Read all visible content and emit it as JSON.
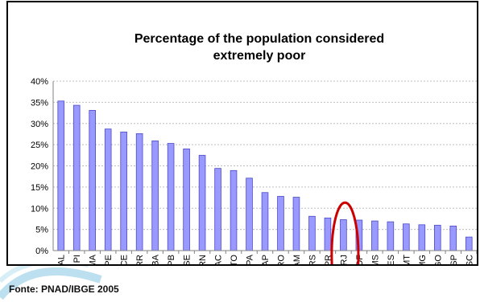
{
  "chart_data": {
    "type": "bar",
    "title_lines": [
      "Percentage of the population considered",
      "extremely poor"
    ],
    "categories": [
      "AL",
      "PI",
      "MA",
      "PE",
      "CE",
      "RR",
      "BA",
      "PB",
      "SE",
      "RN",
      "AC",
      "TO",
      "PA",
      "AP",
      "RO",
      "AM",
      "RS",
      "PR",
      "RJ",
      "DF",
      "MS",
      "ES",
      "MT",
      "MG",
      "GO",
      "SP",
      "SC"
    ],
    "values": [
      35.3,
      34.3,
      33.1,
      28.7,
      28.0,
      27.6,
      25.9,
      25.3,
      24.0,
      22.5,
      19.4,
      18.9,
      17.1,
      13.7,
      12.8,
      12.6,
      8.1,
      7.7,
      7.3,
      7.2,
      7.0,
      6.8,
      6.3,
      6.1,
      6.0,
      5.8,
      3.2
    ],
    "y_ticks": [
      "0%",
      "5%",
      "10%",
      "15%",
      "20%",
      "25%",
      "30%",
      "35%",
      "40%"
    ],
    "ylim": [
      0,
      40
    ],
    "grid": true,
    "highlighted_category": "RJ",
    "colors": {
      "bar_fill": "#9999ff",
      "bar_stroke": "#4b4bc8",
      "grid": "#bdbdbd",
      "highlight": "#cc0000"
    }
  },
  "source_note": "Fonte: PNAD/IBGE 2005"
}
